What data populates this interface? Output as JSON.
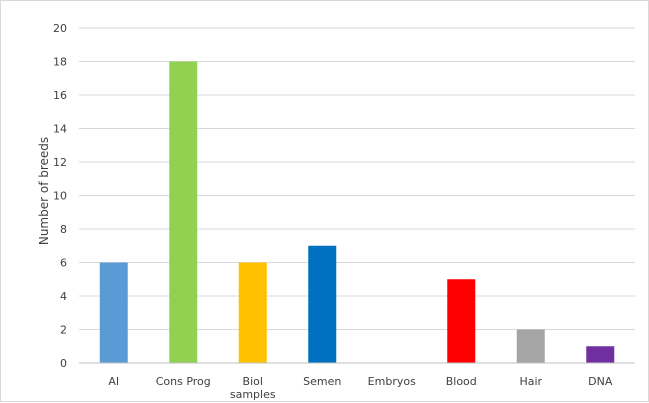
{
  "chart_data": {
    "type": "bar",
    "title": "",
    "xlabel": "",
    "ylabel": "Number of breeds",
    "ylim": [
      0,
      20
    ],
    "y_ticks": [
      "0",
      "2",
      "4",
      "6",
      "8",
      "10",
      "12",
      "14",
      "16",
      "18",
      "20"
    ],
    "grid": true,
    "categories": [
      "AI",
      "Cons Prog",
      "Biol samples",
      "Semen",
      "Embryos",
      "Blood",
      "Hair",
      "DNA"
    ],
    "category_lines": [
      [
        "AI"
      ],
      [
        "Cons Prog"
      ],
      [
        "Biol",
        "samples"
      ],
      [
        "Semen"
      ],
      [
        "Embryos"
      ],
      [
        "Blood"
      ],
      [
        "Hair"
      ],
      [
        "DNA"
      ]
    ],
    "values": [
      6,
      18,
      6,
      7,
      0,
      5,
      2,
      1
    ],
    "colors": [
      "#5B9BD5",
      "#92D050",
      "#FFC000",
      "#0070C0",
      "#5B9BD5",
      "#FF0000",
      "#A5A5A5",
      "#7030A0"
    ]
  }
}
